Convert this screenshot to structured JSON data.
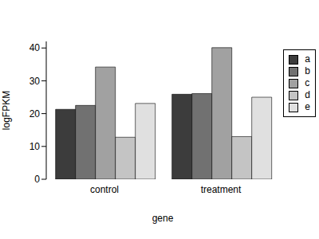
{
  "chart_data": {
    "type": "bar",
    "x_label": "gene",
    "y_label": "logFPKM",
    "categories": [
      "control",
      "treatment"
    ],
    "series": [
      {
        "name": "a",
        "color": "#3c3c3c",
        "values": [
          21.3,
          25.9
        ]
      },
      {
        "name": "b",
        "color": "#717171",
        "values": [
          22.5,
          26.1
        ]
      },
      {
        "name": "c",
        "color": "#a1a1a1",
        "values": [
          34.2,
          40.1
        ]
      },
      {
        "name": "d",
        "color": "#c4c4c4",
        "values": [
          12.8,
          13.0
        ]
      },
      {
        "name": "e",
        "color": "#e0e0e0",
        "values": [
          23.1,
          25.0
        ]
      }
    ],
    "ylim": [
      0,
      42
    ],
    "yticks": [
      0,
      10,
      20,
      30,
      40
    ],
    "grid": false,
    "legend": "top-right"
  }
}
